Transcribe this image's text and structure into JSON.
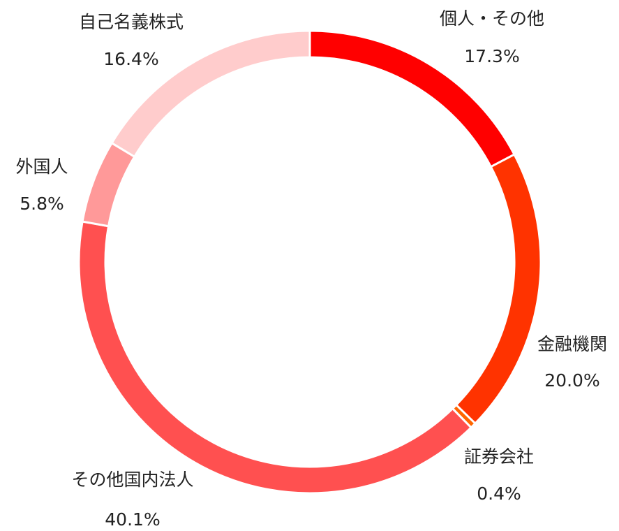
{
  "chart_data": {
    "type": "donut",
    "categories": [
      "個人・その他",
      "金融機関",
      "証券会社",
      "その他国内法人",
      "外国人",
      "自己名義株式"
    ],
    "values": [
      17.3,
      20.0,
      0.4,
      40.1,
      5.8,
      16.4
    ],
    "value_labels": [
      "17.3%",
      "20.0%",
      "0.4%",
      "40.1%",
      "5.8%",
      "16.4%"
    ],
    "colors": [
      "#ff0000",
      "#ff3300",
      "#ff6600",
      "#ff5050",
      "#ff9999",
      "#ffcccc"
    ]
  }
}
